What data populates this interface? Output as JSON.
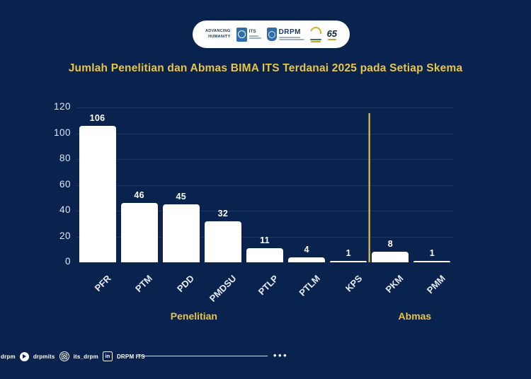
{
  "header": {
    "advancing_line1": "ADVANCING",
    "advancing_line2": "HUMANITY",
    "its_label": "ITS",
    "drpm_label": "DRPM",
    "anniversary_label": "65"
  },
  "title": "Jumlah Penelitian dan Abmas BIMA ITS Terdanai 2025 pada Setiap Skema",
  "chart_data": {
    "type": "bar",
    "title": "Jumlah Penelitian dan Abmas BIMA ITS Terdanai 2025 pada Setiap Skema",
    "categories": [
      "PFR",
      "PTM",
      "PDD",
      "PMDSU",
      "PTLP",
      "PTLM",
      "KPS",
      "PKM",
      "PMM"
    ],
    "values": [
      106,
      46,
      45,
      32,
      11,
      4,
      1,
      8,
      1
    ],
    "yticks": [
      0,
      20,
      40,
      60,
      80,
      100,
      120
    ],
    "ylim": [
      0,
      120
    ],
    "xlabel": "",
    "ylabel": "",
    "grid": true,
    "legend": "none",
    "bar_color": "#ffffff",
    "background_color": "#0a224e",
    "accent_gold": "#e7c545",
    "divider_after_index": 6,
    "groups": [
      {
        "label": "Penelitian",
        "from": 0,
        "to": 6
      },
      {
        "label": "Abmas",
        "from": 7,
        "to": 8
      }
    ]
  },
  "footer": {
    "cut_handle": "drpm",
    "links": [
      {
        "network": "youtube",
        "handle": "drpmits"
      },
      {
        "network": "instagram",
        "handle": "its_drpm"
      },
      {
        "network": "linkedin",
        "handle": "DRPM ITS"
      }
    ],
    "more_dots": "•••"
  }
}
